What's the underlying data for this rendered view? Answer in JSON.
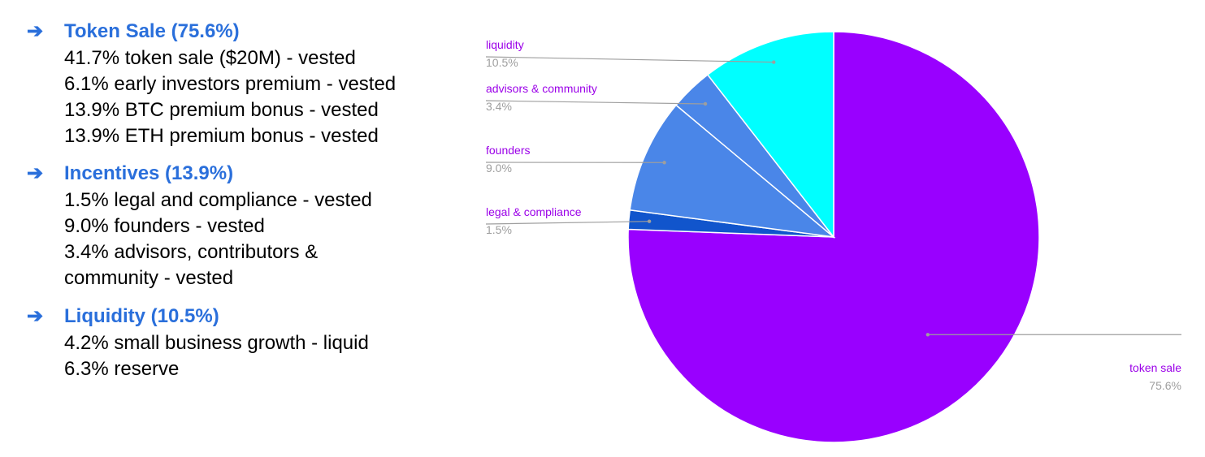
{
  "colors": {
    "heading": "#2a6fdb",
    "body_text": "#000000",
    "label_text": "#9b00e8",
    "pct_text": "#9e9e9e",
    "leader_line": "#9e9e9e",
    "slice_border": "#ffffff"
  },
  "icons": {
    "bullet_arrow": "➔"
  },
  "sections": [
    {
      "heading": "Token Sale (75.6%)",
      "items": [
        "41.7% token sale ($20M) - vested",
        "6.1% early investors premium - vested",
        "13.9% BTC premium bonus - vested",
        "13.9% ETH premium bonus - vested"
      ]
    },
    {
      "heading": "Incentives (13.9%)",
      "items": [
        "1.5% legal and compliance - vested",
        "9.0% founders - vested",
        "3.4% advisors, contributors &",
        "community - vested"
      ]
    },
    {
      "heading": "Liquidity (10.5%)",
      "items": [
        "4.2% small business growth - liquid",
        "6.3% reserve"
      ]
    }
  ],
  "chart_data": {
    "type": "pie",
    "title": "",
    "start_angle_deg": 0,
    "direction": "clockwise",
    "label_style": "leader lines to outside labels",
    "slices": [
      {
        "label": "token sale",
        "value": 75.6,
        "display": "75.6%",
        "color": "#9900ff"
      },
      {
        "label": "legal & compliance",
        "value": 1.5,
        "display": "1.5%",
        "color": "#1155cc"
      },
      {
        "label": "founders",
        "value": 9.0,
        "display": "9.0%",
        "color": "#4a86e8"
      },
      {
        "label": "advisors & community",
        "value": 3.4,
        "display": "3.4%",
        "color": "#4a86e8"
      },
      {
        "label": "liquidity",
        "value": 10.5,
        "display": "10.5%",
        "color": "#00ffff"
      }
    ]
  }
}
